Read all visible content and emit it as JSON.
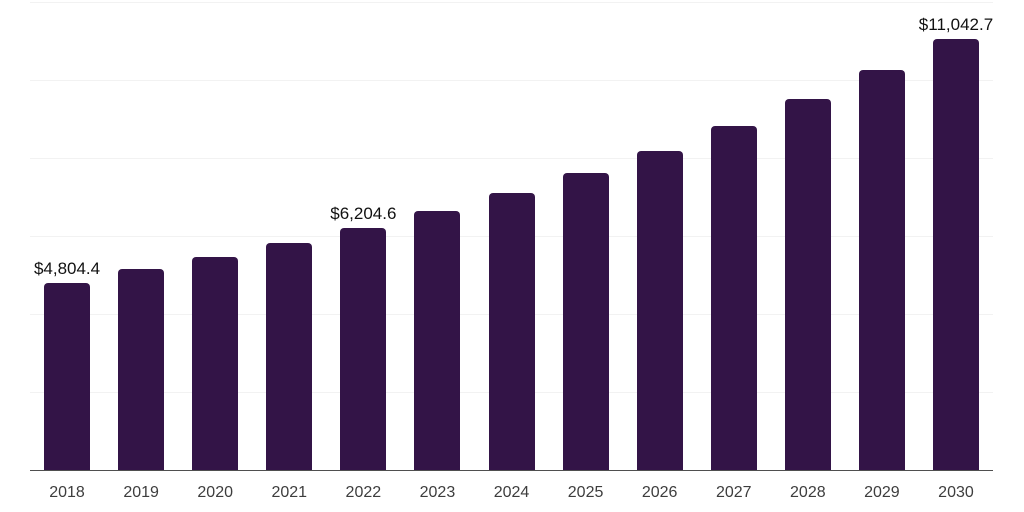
{
  "chart_data": {
    "type": "bar",
    "title": "",
    "xlabel": "",
    "ylabel": "",
    "categories": [
      "2018",
      "2019",
      "2020",
      "2021",
      "2022",
      "2023",
      "2024",
      "2025",
      "2026",
      "2027",
      "2028",
      "2029",
      "2030"
    ],
    "values": [
      4804.4,
      5150,
      5470,
      5830,
      6204.6,
      6640,
      7100,
      7615,
      8170,
      8820,
      9520,
      10260,
      11042.7
    ],
    "value_labels": [
      "$4,804.4",
      "",
      "",
      "",
      "$6,204.6",
      "",
      "",
      "",
      "",
      "",
      "",
      "",
      "$11,042.7"
    ],
    "ylim": [
      0,
      12000
    ],
    "gridline_step": 2000,
    "grid": "horizontal gridlines, no y-axis tick labels",
    "legend": "none",
    "colors": {
      "bar": "#331447",
      "gridline": "#f2f2f2",
      "axis_line": "#4f4f4f",
      "value_label_text": "#111111",
      "tick_label_text": "#3d3d3d",
      "background": "#ffffff"
    }
  }
}
